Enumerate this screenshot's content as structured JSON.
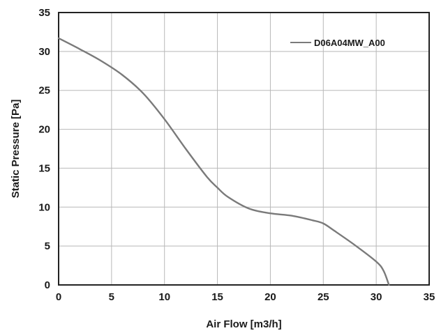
{
  "chart_data": {
    "type": "line",
    "xlabel": "Air Flow [m3/h]",
    "ylabel": "Static Pressure [Pa]",
    "xlim": [
      0,
      35
    ],
    "ylim": [
      0,
      35
    ],
    "x_ticks": [
      "0",
      "5",
      "10",
      "15",
      "20",
      "25",
      "30",
      "35"
    ],
    "y_ticks": [
      "0",
      "5",
      "10",
      "15",
      "20",
      "25",
      "30",
      "35"
    ],
    "grid": true,
    "legend_position": "top-right",
    "series": [
      {
        "name": "D06A04MW_A00",
        "color": "#7a7a7a",
        "x": [
          0,
          2,
          4,
          6,
          8,
          10,
          12,
          14,
          15,
          16,
          18,
          20,
          22,
          24,
          25,
          26,
          28,
          30,
          30.7,
          31.2
        ],
        "y": [
          31.7,
          30.3,
          28.8,
          27.0,
          24.6,
          21.3,
          17.5,
          13.9,
          12.5,
          11.3,
          9.8,
          9.2,
          8.9,
          8.3,
          7.9,
          7.0,
          5.1,
          3.0,
          1.8,
          0
        ]
      }
    ]
  }
}
